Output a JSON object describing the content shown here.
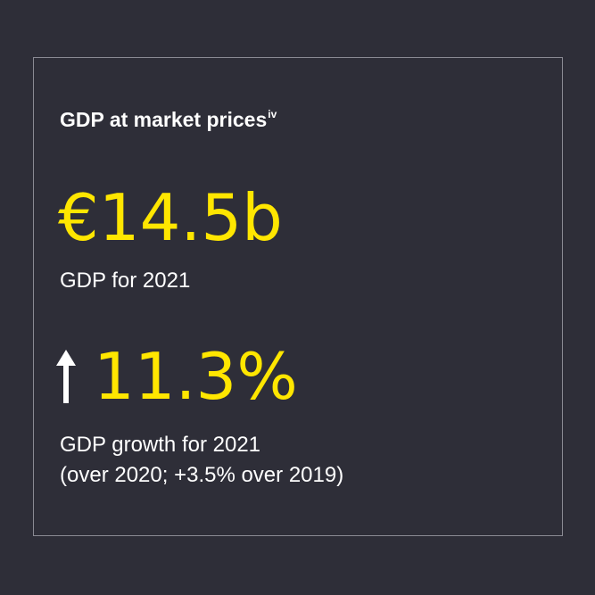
{
  "card": {
    "title": "GDP at market prices",
    "title_superscript": "iv",
    "gdp_value": "€14.5b",
    "gdp_label": "GDP for 2021",
    "growth_value": "11.3%",
    "growth_label_line1": "GDP growth for 2021",
    "growth_label_line2": "(over 2020; +3.5% over 2019)",
    "growth_icon": "arrow-up-icon"
  },
  "colors": {
    "background": "#2e2e38",
    "accent": "#ffe600",
    "text": "#ffffff",
    "border": "#8a8a93"
  }
}
